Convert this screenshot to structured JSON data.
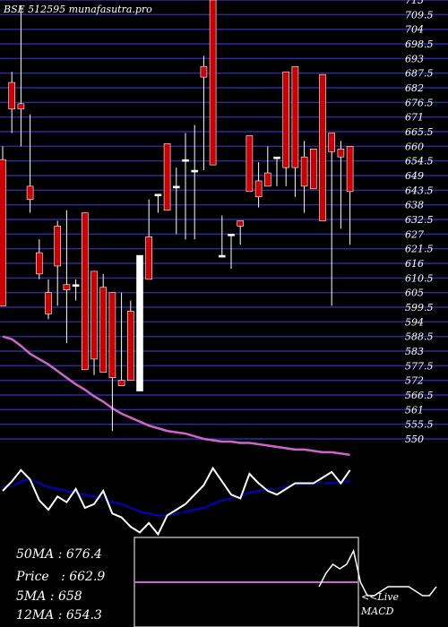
{
  "title": "BSE 512595 munafasutra.pro",
  "info": {
    "ma50": "50MA : 676.4",
    "price": "Price   : 662.9",
    "ma5": "5MA : 658",
    "ma12": "12MA : 654.3"
  },
  "macd": {
    "live": "<<Live",
    "label": "MACD"
  },
  "colors": {
    "up": "#ffffff",
    "down": "#cc0000",
    "grid": "#2b2b9c",
    "ma": "#cc66cc",
    "blue": "#0000cc"
  },
  "chart_data": {
    "type": "candlestick",
    "y_ticks": [
      "715",
      "709.5",
      "704",
      "698.5",
      "693",
      "687.5",
      "682",
      "676.5",
      "671",
      "665.5",
      "660",
      "654.5",
      "649",
      "643.5",
      "638",
      "632.5",
      "627",
      "621.5",
      "616",
      "610.5",
      "605",
      "599.5",
      "594",
      "588.5",
      "583",
      "577.5",
      "572",
      "566.5",
      "561",
      "555.5",
      "550"
    ],
    "y_range": [
      550,
      715
    ],
    "candles": [
      {
        "o": 655,
        "h": 660,
        "l": 600,
        "c": 600
      },
      {
        "o": 684,
        "h": 688,
        "l": 665,
        "c": 674
      },
      {
        "o": 676,
        "h": 713,
        "l": 660,
        "c": 674
      },
      {
        "o": 645,
        "h": 672,
        "l": 635,
        "c": 640
      },
      {
        "o": 620,
        "h": 625,
        "l": 610,
        "c": 612
      },
      {
        "o": 605,
        "h": 610,
        "l": 595,
        "c": 597
      },
      {
        "o": 630,
        "h": 632,
        "l": 600,
        "c": 615
      },
      {
        "o": 608,
        "h": 636,
        "l": 586,
        "c": 606
      },
      {
        "o": 608,
        "h": 610,
        "l": 602,
        "c": 608
      },
      {
        "o": 635,
        "h": 635,
        "l": 576,
        "c": 576
      },
      {
        "o": 613,
        "h": 613,
        "l": 574,
        "c": 580
      },
      {
        "o": 607,
        "h": 612,
        "l": 575,
        "c": 575
      },
      {
        "o": 605,
        "h": 605,
        "l": 553,
        "c": 573
      },
      {
        "o": 572,
        "h": 605,
        "l": 570,
        "c": 570
      },
      {
        "o": 598,
        "h": 602,
        "l": 572,
        "c": 572
      },
      {
        "o": 568,
        "h": 619,
        "l": 568,
        "c": 619
      },
      {
        "o": 626,
        "h": 640,
        "l": 610,
        "c": 610
      },
      {
        "o": 642,
        "h": 642,
        "l": 635,
        "c": 642
      },
      {
        "o": 661,
        "h": 661,
        "l": 636,
        "c": 636
      },
      {
        "o": 645,
        "h": 652,
        "l": 627,
        "c": 645
      },
      {
        "o": 655,
        "h": 665,
        "l": 625,
        "c": 655
      },
      {
        "o": 651,
        "h": 668,
        "l": 625,
        "c": 651
      },
      {
        "o": 690,
        "h": 694,
        "l": 651,
        "c": 686
      },
      {
        "o": 715,
        "h": 715,
        "l": 653,
        "c": 653
      },
      {
        "o": 619,
        "h": 634,
        "l": 619,
        "c": 619
      },
      {
        "o": 627,
        "h": 627,
        "l": 614,
        "c": 627
      },
      {
        "o": 632,
        "h": 632,
        "l": 623,
        "c": 630
      },
      {
        "o": 664,
        "h": 664,
        "l": 643,
        "c": 643
      },
      {
        "o": 647,
        "h": 654,
        "l": 637,
        "c": 641
      },
      {
        "o": 650,
        "h": 660,
        "l": 645,
        "c": 645
      },
      {
        "o": 656,
        "h": 656,
        "l": 645,
        "c": 656
      },
      {
        "o": 688,
        "h": 688,
        "l": 645,
        "c": 652
      },
      {
        "o": 690,
        "h": 690,
        "l": 641,
        "c": 652
      },
      {
        "o": 656,
        "h": 662,
        "l": 635,
        "c": 645
      },
      {
        "o": 659,
        "h": 659,
        "l": 644,
        "c": 644
      },
      {
        "o": 687,
        "h": 687,
        "l": 632,
        "c": 632
      },
      {
        "o": 665,
        "h": 665,
        "l": 600,
        "c": 658
      },
      {
        "o": 659,
        "h": 662,
        "l": 629,
        "c": 656
      },
      {
        "o": 660,
        "h": 660,
        "l": 623,
        "c": 643
      }
    ],
    "ma_line": [
      588.5,
      587.5,
      585,
      582,
      580,
      578,
      575.5,
      573,
      570.5,
      568.5,
      566,
      564,
      561.5,
      559.5,
      558,
      556.5,
      555,
      554,
      553,
      552.5,
      552,
      551,
      550,
      549.5,
      549,
      549,
      548.5,
      548.5,
      548,
      547.5,
      547,
      546.5,
      546,
      546,
      545.5,
      545,
      545,
      544.5,
      544
    ],
    "macd_panel": {
      "white_line": [
        -0.3,
        0.2,
        0.8,
        0.3,
        -0.8,
        -1.3,
        -0.6,
        -0.9,
        -0.2,
        -1.2,
        -1.0,
        -0.3,
        -1.5,
        -1.7,
        -2.2,
        -2.5,
        -2.0,
        -2.6,
        -1.6,
        -1.3,
        -1.0,
        -0.5,
        0,
        0.9,
        0.2,
        -0.5,
        -0.7,
        0.6,
        0.1,
        -0.3,
        -0.5,
        -0.2,
        0.1,
        0.1,
        0.1,
        0.4,
        0.7,
        0.1,
        0.8
      ],
      "black_line": [
        -0.2,
        -0.1,
        0.5,
        0.4,
        -0.2,
        -0.7,
        -0.6,
        -0.8,
        -0.5,
        -0.7,
        -0.9,
        -0.7,
        -1.0,
        -1.4,
        -1.7,
        -2.0,
        -2.0,
        -2.1,
        -1.8,
        -1.6,
        -1.3,
        -1.0,
        -0.7,
        -0.3,
        -0.2,
        -0.3,
        -0.4,
        0.0,
        0.0,
        -0.1,
        -0.2,
        -0.2,
        0.0,
        0.0,
        0.0,
        0.1,
        0.3,
        0.2,
        0.3
      ],
      "blue_line": [
        -0.1,
        -0.1,
        0.2,
        0.3,
        0.1,
        -0.1,
        -0.2,
        -0.3,
        -0.4,
        -0.5,
        -0.6,
        -0.7,
        -0.9,
        -1.0,
        -1.2,
        -1.4,
        -1.5,
        -1.6,
        -1.6,
        -1.5,
        -1.4,
        -1.3,
        -1.2,
        -1.0,
        -0.8,
        -0.7,
        -0.6,
        -0.4,
        -0.3,
        -0.2,
        -0.2,
        -0.1,
        0.0,
        0.0,
        0.1,
        0.1,
        0.1,
        0.2,
        0.2
      ],
      "range": [
        -3,
        1.5
      ]
    },
    "macd_inset": {
      "signal_value": 0,
      "histogram_line": [
        0,
        0,
        0,
        0,
        0,
        0,
        0,
        0,
        0,
        0,
        0,
        0,
        0,
        -0.1,
        0.2,
        0.4,
        0.3,
        0.4,
        0.7,
        0,
        -0.3,
        -0.3,
        -0.2,
        -0.1,
        -0.1,
        -0.1,
        -0.1,
        -0.2,
        -0.3,
        -0.3,
        -0.1
      ],
      "range": [
        -1,
        1
      ],
      "start_index": 25
    }
  }
}
